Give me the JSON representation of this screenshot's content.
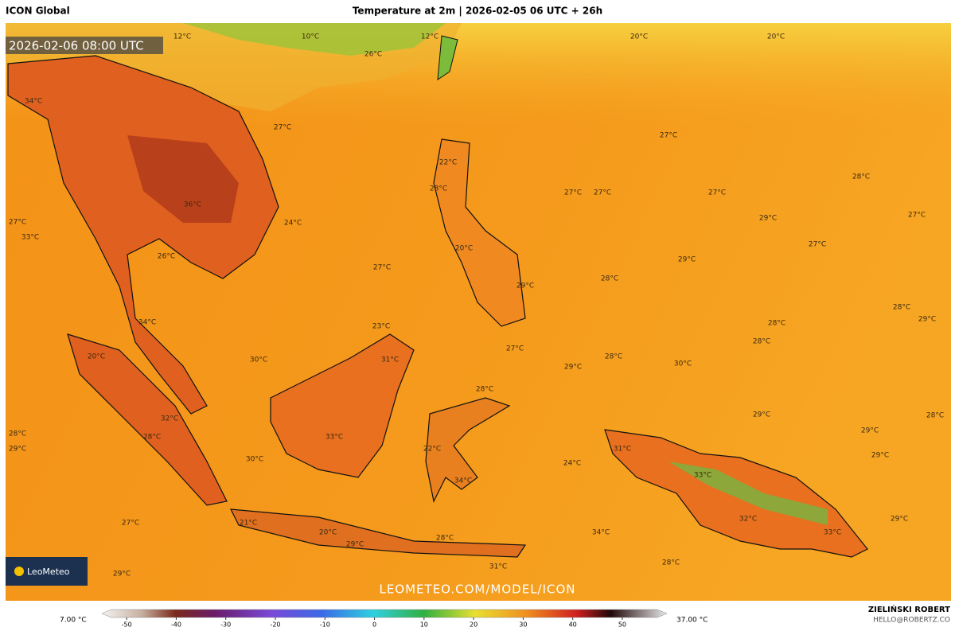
{
  "header": {
    "model": "ICON Global",
    "title": "Temperature at 2m | 2026-02-05 06 UTC + 26h",
    "valid_time": "2026-02-06 08:00 UTC"
  },
  "map": {
    "labels": [
      "12°C",
      "10°C",
      "12°C",
      "20°C",
      "20°C",
      "26°C",
      "34°C",
      "27°C",
      "27°C",
      "22°C",
      "28°C",
      "27°C",
      "27°C",
      "27°C",
      "28°C",
      "36°C",
      "27°C",
      "24°C",
      "29°C",
      "27°C",
      "33°C",
      "26°C",
      "27°C",
      "20°C",
      "27°C",
      "29°C",
      "28°C",
      "29°C",
      "34°C",
      "23°C",
      "28°C",
      "29°C",
      "28°C",
      "28°C",
      "20°C",
      "30°C",
      "31°C",
      "27°C",
      "28°C",
      "30°C",
      "29°C",
      "28°C",
      "32°C",
      "28°C",
      "29°C",
      "28°C",
      "33°C",
      "22°C",
      "30°C",
      "29°C",
      "28°C",
      "29°C",
      "29°C",
      "31°C",
      "24°C",
      "34°C",
      "33°C",
      "27°C",
      "21°C",
      "20°C",
      "29°C",
      "28°C",
      "32°C",
      "33°C",
      "29°C",
      "34°C",
      "29°C",
      "28°C",
      "31°C"
    ],
    "watermark": "LEOMETEO.COM/MODEL/ICON",
    "logo": "LeoMeteo"
  },
  "colorbar": {
    "lim": [
      -55,
      59
    ],
    "ticks": [
      -50,
      -40,
      -30,
      -20,
      -10,
      0,
      10,
      20,
      30,
      40,
      50
    ],
    "min_label": "7.00 °C",
    "max_label": "37.00 °C"
  },
  "footer": {
    "author": "ZIELIŃSKI ROBERT",
    "contact": "HELLO@ROBERTZ.CO"
  }
}
